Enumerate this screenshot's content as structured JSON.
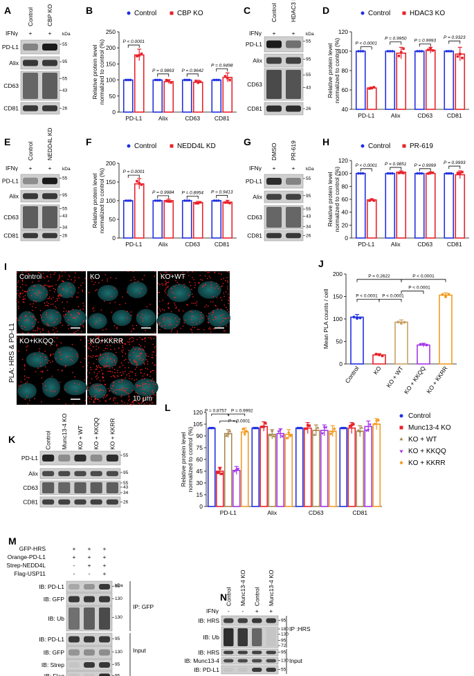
{
  "colors": {
    "control": "#1f2fe0",
    "red": "#e8212a",
    "ko_wt": "#a8864e",
    "kkqq": "#a334e8",
    "kkrr": "#f39a1f",
    "tan": "#c8a064"
  },
  "panels": {
    "A": {
      "letter": "A",
      "ifn": "IFNγ",
      "lanes": [
        "Control",
        "CBP KO"
      ],
      "plus": [
        "+",
        "+"
      ],
      "kda": "kDa",
      "rows": [
        "PD-L1",
        "Alix",
        "CD63",
        "CD81"
      ],
      "markers": [
        "55",
        "95",
        "55",
        "43",
        "26"
      ]
    },
    "B": {
      "letter": "B",
      "legend": [
        "Control",
        "CBP KO"
      ],
      "ylabel": "Relative protein level normalized to control (%)",
      "yticks": [
        "0",
        "50",
        "100",
        "150",
        "200",
        "250"
      ],
      "groups": [
        "PD-L1",
        "Alix",
        "CD63",
        "CD81"
      ],
      "pvals": [
        "P < 0.0001",
        "P = 0.9863",
        "P = 0.9642",
        "P = 0.9498"
      ]
    },
    "C": {
      "letter": "C",
      "ifn": "IFNγ",
      "lanes": [
        "Control",
        "HDAC3 KO"
      ],
      "plus": [
        "+",
        "+"
      ],
      "kda": "kDa",
      "rows": [
        "PD-L1",
        "Alix",
        "CD63",
        "CD81"
      ],
      "markers": [
        "55",
        "95",
        "55",
        "43",
        "26"
      ]
    },
    "D": {
      "letter": "D",
      "legend": [
        "Control",
        "HDAC3 KO"
      ],
      "ylabel": "Relative protein level normalized to control (%)",
      "yticks": [
        "40",
        "60",
        "80",
        "100",
        "120"
      ],
      "groups": [
        "PD-L1",
        "Alix",
        "CD63",
        "CD81"
      ],
      "pvals": [
        "P < 0.0001",
        "P = 0.9950",
        "P = 0.9993",
        "P = 0.9323"
      ]
    },
    "E": {
      "letter": "E",
      "ifn": "IFNγ",
      "lanes": [
        "Control",
        "NEDD4L KD"
      ],
      "plus": [
        "+",
        "+"
      ],
      "kda": "kDa",
      "rows": [
        "PD-L1",
        "Alix",
        "CD63",
        "CD81"
      ],
      "markers": [
        "55",
        "95",
        "55",
        "43",
        "34",
        "26"
      ]
    },
    "F": {
      "letter": "F",
      "legend": [
        "Control",
        "NEDD4L KD"
      ],
      "ylabel": "Relative protein level normalized to control (%)",
      "yticks": [
        "0",
        "50",
        "100",
        "150",
        "200"
      ],
      "groups": [
        "PD-L1",
        "Alix",
        "CD63",
        "CD81"
      ],
      "pvals": [
        "P = 0.0001",
        "P = 0.9984",
        "P = 0.8954",
        "P = 0.9413"
      ]
    },
    "G": {
      "letter": "G",
      "ifn": "IFNγ",
      "lanes": [
        "DMSO",
        "PR-619"
      ],
      "plus": [
        "+",
        "+"
      ],
      "kda": "kDa",
      "rows": [
        "PD-L1",
        "Alix",
        "CD63",
        "CD81"
      ],
      "markers": [
        "55",
        "95",
        "55",
        "43",
        "34",
        "26"
      ]
    },
    "H": {
      "letter": "H",
      "legend": [
        "Control",
        "PR-619"
      ],
      "ylabel": "Relative protein level normalized to control (%)",
      "yticks": [
        "0",
        "20",
        "40",
        "60",
        "80",
        "100",
        "120"
      ],
      "groups": [
        "PD-L1",
        "Alix",
        "CD63",
        "CD81"
      ],
      "pvals": [
        "P < 0.0001",
        "P = 0.9851",
        "P = 0.9999",
        "P = 0.9993"
      ]
    },
    "I": {
      "letter": "I",
      "side": "PLA: HRS & PD-L1",
      "tiles": [
        "Control",
        "KO",
        "KO+WT",
        "KO+KKQQ",
        "KO+KKRR"
      ],
      "scale": "10 μm"
    },
    "J": {
      "letter": "J",
      "ylabel": "Mean PLA counts / cell",
      "yticks": [
        "0",
        "50",
        "100",
        "150",
        "200"
      ],
      "cats": [
        "Control",
        "KO",
        "KO + WT",
        "KO + KKQQ",
        "KO + KKRR"
      ],
      "pvals": [
        "P = 0.2622",
        "P < 0.0001",
        "P < 0.0001",
        "P < 0.0001",
        "P < 0.0001"
      ]
    },
    "K": {
      "letter": "K",
      "lanes": [
        "Control",
        "Munc13-4 KO",
        "KO + WT",
        "KO + KKQQ",
        "KO + KKRR"
      ],
      "rows": [
        "PD-L1",
        "Alix",
        "CD63",
        "CD81"
      ],
      "markers": [
        "55",
        "95",
        "55",
        "43",
        "34",
        "26"
      ]
    },
    "L": {
      "letter": "L",
      "ylabel": "Relative protein level normalized to control (%)",
      "yticks": [
        "0",
        "15",
        "30",
        "45",
        "60",
        "75",
        "90",
        "105",
        "120"
      ],
      "groups": [
        "PD-L1",
        "Alix",
        "CD63",
        "CD81"
      ],
      "legend": [
        "Control",
        "Munc13-4 KO",
        "KO + WT",
        "KO + KKQQ",
        "KO + KKRR"
      ],
      "pvals": [
        "P = 0.8757",
        "P = 0.9992",
        "P < 0.0001"
      ]
    },
    "M": {
      "letter": "M",
      "conds": [
        {
          "label": "GFP-HRS",
          "v": [
            "+",
            "+",
            "+"
          ]
        },
        {
          "label": "Orange-PD-L1",
          "v": [
            "+",
            "+",
            "+"
          ]
        },
        {
          "label": "Strep-NEDD4L",
          "v": [
            "-",
            "+",
            "+"
          ]
        },
        {
          "label": "Flag-USP11",
          "v": [
            "-",
            "-",
            "+"
          ]
        }
      ],
      "rows": [
        "IB: PD-L1",
        "IB: GFP",
        "IB: Ub",
        "IB: PD-L1",
        "IB: GFP",
        "IB: Strep",
        "IB: Flag"
      ],
      "kda": "kDa",
      "markers": [
        "95",
        "130",
        "130",
        "95",
        "130",
        "95",
        "95"
      ],
      "ip": "IP: GFP",
      "input": "Input"
    },
    "N": {
      "letter": "N",
      "lanes": [
        "Control",
        "Munc13-4 KO",
        "Control",
        "Munc13-4 KO"
      ],
      "ifn": "IFNγ",
      "ifnv": [
        "-",
        "-",
        "+",
        "+"
      ],
      "rows": [
        "IB: HRS",
        "IB: Ub",
        "IB: HRS",
        "IB: Munc13-4",
        "IB: PD-L1"
      ],
      "markers": [
        "95",
        "180",
        "130",
        "95",
        "72",
        "95",
        "130",
        "55"
      ],
      "ip": "IP :HRS",
      "input": "Input"
    }
  },
  "chart_data": [
    {
      "type": "bar",
      "panel": "B",
      "categories": [
        "PD-L1",
        "Alix",
        "CD63",
        "CD81"
      ],
      "series": [
        {
          "name": "Control",
          "values": [
            100,
            100,
            100,
            100
          ]
        },
        {
          "name": "CBP KO",
          "values": [
            178,
            95,
            93,
            108
          ]
        }
      ],
      "ylim": [
        0,
        250
      ],
      "ylabel": "Relative protein level normalized to control (%)"
    },
    {
      "type": "bar",
      "panel": "D",
      "categories": [
        "PD-L1",
        "Alix",
        "CD63",
        "CD81"
      ],
      "series": [
        {
          "name": "Control",
          "values": [
            100,
            100,
            100,
            100
          ]
        },
        {
          "name": "HDAC3 KO",
          "values": [
            62,
            98,
            101,
            97
          ]
        }
      ],
      "ylim": [
        40,
        120
      ],
      "ylabel": "Relative protein level normalized to control (%)"
    },
    {
      "type": "bar",
      "panel": "F",
      "categories": [
        "PD-L1",
        "Alix",
        "CD63",
        "CD81"
      ],
      "series": [
        {
          "name": "Control",
          "values": [
            100,
            100,
            100,
            100
          ]
        },
        {
          "name": "NEDD4L KD",
          "values": [
            145,
            100,
            95,
            96
          ]
        }
      ],
      "ylim": [
        0,
        200
      ],
      "ylabel": "Relative protein level normalized to control (%)"
    },
    {
      "type": "bar",
      "panel": "H",
      "categories": [
        "PD-L1",
        "Alix",
        "CD63",
        "CD81"
      ],
      "series": [
        {
          "name": "Control",
          "values": [
            100,
            100,
            100,
            100
          ]
        },
        {
          "name": "PR-619",
          "values": [
            59,
            102,
            100,
            98
          ]
        }
      ],
      "ylim": [
        0,
        120
      ],
      "ylabel": "Relative protein level normalized to control (%)"
    },
    {
      "type": "bar",
      "panel": "J",
      "categories": [
        "Control",
        "KO",
        "KO + WT",
        "KO + KKQQ",
        "KO + KKRR"
      ],
      "values": [
        104,
        20,
        93,
        42,
        153
      ],
      "ylim": [
        0,
        200
      ],
      "ylabel": "Mean PLA counts / cell"
    },
    {
      "type": "bar",
      "panel": "L",
      "categories": [
        "PD-L1",
        "Alix",
        "CD63",
        "CD81"
      ],
      "series": [
        {
          "name": "Control",
          "values": [
            100,
            100,
            100,
            100
          ]
        },
        {
          "name": "Munc13-4 KO",
          "values": [
            45,
            102,
            100,
            100
          ]
        },
        {
          "name": "KO + WT",
          "values": [
            93,
            92,
            97,
            96
          ]
        },
        {
          "name": "KO + KKQQ",
          "values": [
            46,
            93,
            97,
            102
          ]
        },
        {
          "name": "KO + KKRR",
          "values": [
            95,
            92,
            96,
            105
          ]
        }
      ],
      "ylim": [
        0,
        120
      ],
      "ylabel": "Relative protein level normalized to control (%)"
    }
  ]
}
